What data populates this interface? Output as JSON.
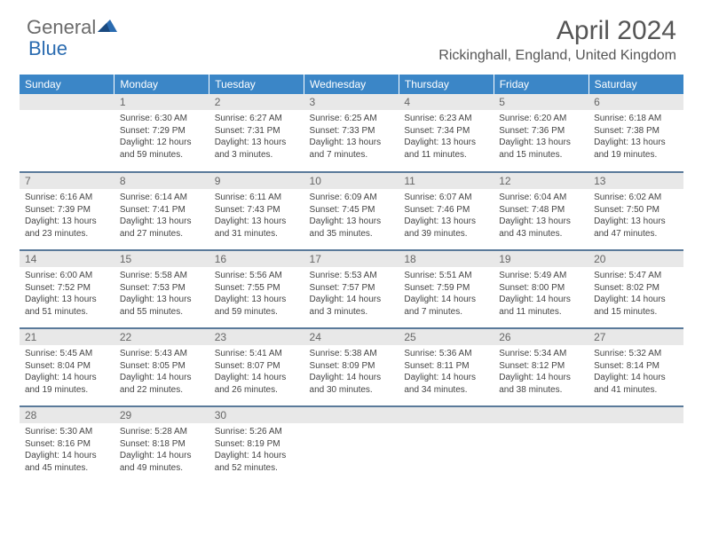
{
  "logo": {
    "text1": "General",
    "text2": "Blue"
  },
  "title": "April 2024",
  "location": "Rickinghall, England, United Kingdom",
  "colors": {
    "header_bg": "#3b86c7",
    "header_text": "#ffffff",
    "daynum_bg": "#e8e8e8",
    "daynum_text": "#666666",
    "body_text": "#444444",
    "divider": "#5a7a9a",
    "logo_gray": "#6b6b6b",
    "logo_blue": "#2a6bb0"
  },
  "weekdays": [
    "Sunday",
    "Monday",
    "Tuesday",
    "Wednesday",
    "Thursday",
    "Friday",
    "Saturday"
  ],
  "weeks": [
    [
      null,
      {
        "n": "1",
        "sr": "6:30 AM",
        "ss": "7:29 PM",
        "dl": "12 hours and 59 minutes."
      },
      {
        "n": "2",
        "sr": "6:27 AM",
        "ss": "7:31 PM",
        "dl": "13 hours and 3 minutes."
      },
      {
        "n": "3",
        "sr": "6:25 AM",
        "ss": "7:33 PM",
        "dl": "13 hours and 7 minutes."
      },
      {
        "n": "4",
        "sr": "6:23 AM",
        "ss": "7:34 PM",
        "dl": "13 hours and 11 minutes."
      },
      {
        "n": "5",
        "sr": "6:20 AM",
        "ss": "7:36 PM",
        "dl": "13 hours and 15 minutes."
      },
      {
        "n": "6",
        "sr": "6:18 AM",
        "ss": "7:38 PM",
        "dl": "13 hours and 19 minutes."
      }
    ],
    [
      {
        "n": "7",
        "sr": "6:16 AM",
        "ss": "7:39 PM",
        "dl": "13 hours and 23 minutes."
      },
      {
        "n": "8",
        "sr": "6:14 AM",
        "ss": "7:41 PM",
        "dl": "13 hours and 27 minutes."
      },
      {
        "n": "9",
        "sr": "6:11 AM",
        "ss": "7:43 PM",
        "dl": "13 hours and 31 minutes."
      },
      {
        "n": "10",
        "sr": "6:09 AM",
        "ss": "7:45 PM",
        "dl": "13 hours and 35 minutes."
      },
      {
        "n": "11",
        "sr": "6:07 AM",
        "ss": "7:46 PM",
        "dl": "13 hours and 39 minutes."
      },
      {
        "n": "12",
        "sr": "6:04 AM",
        "ss": "7:48 PM",
        "dl": "13 hours and 43 minutes."
      },
      {
        "n": "13",
        "sr": "6:02 AM",
        "ss": "7:50 PM",
        "dl": "13 hours and 47 minutes."
      }
    ],
    [
      {
        "n": "14",
        "sr": "6:00 AM",
        "ss": "7:52 PM",
        "dl": "13 hours and 51 minutes."
      },
      {
        "n": "15",
        "sr": "5:58 AM",
        "ss": "7:53 PM",
        "dl": "13 hours and 55 minutes."
      },
      {
        "n": "16",
        "sr": "5:56 AM",
        "ss": "7:55 PM",
        "dl": "13 hours and 59 minutes."
      },
      {
        "n": "17",
        "sr": "5:53 AM",
        "ss": "7:57 PM",
        "dl": "14 hours and 3 minutes."
      },
      {
        "n": "18",
        "sr": "5:51 AM",
        "ss": "7:59 PM",
        "dl": "14 hours and 7 minutes."
      },
      {
        "n": "19",
        "sr": "5:49 AM",
        "ss": "8:00 PM",
        "dl": "14 hours and 11 minutes."
      },
      {
        "n": "20",
        "sr": "5:47 AM",
        "ss": "8:02 PM",
        "dl": "14 hours and 15 minutes."
      }
    ],
    [
      {
        "n": "21",
        "sr": "5:45 AM",
        "ss": "8:04 PM",
        "dl": "14 hours and 19 minutes."
      },
      {
        "n": "22",
        "sr": "5:43 AM",
        "ss": "8:05 PM",
        "dl": "14 hours and 22 minutes."
      },
      {
        "n": "23",
        "sr": "5:41 AM",
        "ss": "8:07 PM",
        "dl": "14 hours and 26 minutes."
      },
      {
        "n": "24",
        "sr": "5:38 AM",
        "ss": "8:09 PM",
        "dl": "14 hours and 30 minutes."
      },
      {
        "n": "25",
        "sr": "5:36 AM",
        "ss": "8:11 PM",
        "dl": "14 hours and 34 minutes."
      },
      {
        "n": "26",
        "sr": "5:34 AM",
        "ss": "8:12 PM",
        "dl": "14 hours and 38 minutes."
      },
      {
        "n": "27",
        "sr": "5:32 AM",
        "ss": "8:14 PM",
        "dl": "14 hours and 41 minutes."
      }
    ],
    [
      {
        "n": "28",
        "sr": "5:30 AM",
        "ss": "8:16 PM",
        "dl": "14 hours and 45 minutes."
      },
      {
        "n": "29",
        "sr": "5:28 AM",
        "ss": "8:18 PM",
        "dl": "14 hours and 49 minutes."
      },
      {
        "n": "30",
        "sr": "5:26 AM",
        "ss": "8:19 PM",
        "dl": "14 hours and 52 minutes."
      },
      null,
      null,
      null,
      null
    ]
  ],
  "labels": {
    "sunrise": "Sunrise:",
    "sunset": "Sunset:",
    "daylight": "Daylight:"
  }
}
